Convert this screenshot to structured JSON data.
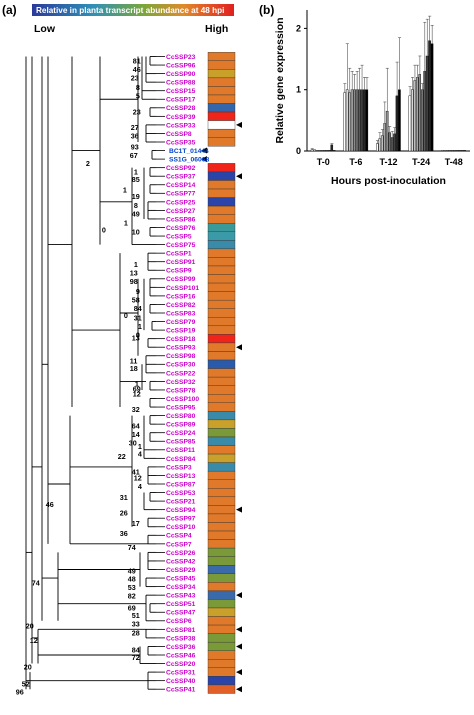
{
  "panel_a": {
    "label": "(a)",
    "colorbar_title": "Relative in planta transcript abundance at 48 hpi",
    "low_label": "Low",
    "high_label": "High",
    "leaves": [
      {
        "name": "CcSSP23",
        "color": "#e07a2a"
      },
      {
        "name": "CcSSP96",
        "color": "#e07a2a"
      },
      {
        "name": "CcSSP90",
        "color": "#c9a02a"
      },
      {
        "name": "CcSSP88",
        "color": "#e07a2a"
      },
      {
        "name": "CcSSP15",
        "color": "#e07a2a"
      },
      {
        "name": "CcSSP17",
        "color": "#e07a2a"
      },
      {
        "name": "CcSSP28",
        "color": "#3366aa"
      },
      {
        "name": "CcSSP39",
        "color": "#f02418"
      },
      {
        "name": "CcSSP33",
        "color": "#ffffff",
        "arrow": true
      },
      {
        "name": "CcSSP8",
        "color": "#e07a2a"
      },
      {
        "name": "CcSSP35",
        "color": "#e07a2a"
      },
      {
        "name": "BC1T_01444",
        "color": "",
        "ref": true,
        "arrow": true
      },
      {
        "name": "SS1G_06068",
        "color": "",
        "ref": true,
        "arrow": true
      },
      {
        "name": "CcSSP92",
        "color": "#f02418"
      },
      {
        "name": "CcSSP37",
        "color": "#2a44aa",
        "arrow": true
      },
      {
        "name": "CcSSP14",
        "color": "#e07a2a"
      },
      {
        "name": "CcSSP77",
        "color": "#e07a2a"
      },
      {
        "name": "CcSSP25",
        "color": "#2a44aa"
      },
      {
        "name": "CcSSP27",
        "color": "#e07a2a"
      },
      {
        "name": "CcSSP86",
        "color": "#e07a2a"
      },
      {
        "name": "CcSSP76",
        "color": "#3a9a9a"
      },
      {
        "name": "CcSSP5",
        "color": "#3a9aa8"
      },
      {
        "name": "CcSSP75",
        "color": "#3a8aaa"
      },
      {
        "name": "CcSSP1",
        "color": "#e07a2a"
      },
      {
        "name": "CcSSP91",
        "color": "#e07a2a"
      },
      {
        "name": "CcSSP9",
        "color": "#e07a2a"
      },
      {
        "name": "CcSSP99",
        "color": "#e07a2a"
      },
      {
        "name": "CcSSP101",
        "color": "#e07a2a"
      },
      {
        "name": "CcSSP16",
        "color": "#e07a2a"
      },
      {
        "name": "CcSSP82",
        "color": "#e07a2a"
      },
      {
        "name": "CcSSP83",
        "color": "#e07a2a"
      },
      {
        "name": "CcSSP79",
        "color": "#e07a2a"
      },
      {
        "name": "CcSSP19",
        "color": "#e07a2a"
      },
      {
        "name": "CcSSP18",
        "color": "#f02418"
      },
      {
        "name": "CcSSP93",
        "color": "#e07a2a",
        "arrow": true
      },
      {
        "name": "CcSSP98",
        "color": "#e07a2a"
      },
      {
        "name": "CcSSP30",
        "color": "#2a5aaa"
      },
      {
        "name": "CcSSP22",
        "color": "#e07a2a"
      },
      {
        "name": "CcSSP32",
        "color": "#e07a2a"
      },
      {
        "name": "CcSSP78",
        "color": "#e07a2a"
      },
      {
        "name": "CcSSP100",
        "color": "#e07a2a"
      },
      {
        "name": "CcSSP95",
        "color": "#e07a2a"
      },
      {
        "name": "CcSSP80",
        "color": "#3a8aaa"
      },
      {
        "name": "CcSSP89",
        "color": "#c9a02a"
      },
      {
        "name": "CcSSP24",
        "color": "#7a9a3a"
      },
      {
        "name": "CcSSP85",
        "color": "#3a8aaa"
      },
      {
        "name": "CcSSP11",
        "color": "#e07a2a"
      },
      {
        "name": "CcSSP84",
        "color": "#c9a02a"
      },
      {
        "name": "CcSSP3",
        "color": "#3a8aaa"
      },
      {
        "name": "CcSSP13",
        "color": "#e07a2a"
      },
      {
        "name": "CcSSP87",
        "color": "#e07a2a"
      },
      {
        "name": "CcSSP53",
        "color": "#e07a2a"
      },
      {
        "name": "CcSSP21",
        "color": "#e07a2a"
      },
      {
        "name": "CcSSP94",
        "color": "#e07a2a",
        "arrow": true
      },
      {
        "name": "CcSSP97",
        "color": "#e07a2a"
      },
      {
        "name": "CcSSP10",
        "color": "#e07a2a"
      },
      {
        "name": "CcSSP4",
        "color": "#e07a2a"
      },
      {
        "name": "CcSSP7",
        "color": "#e07a2a"
      },
      {
        "name": "CcSSP26",
        "color": "#7a9a3a"
      },
      {
        "name": "CcSSP42",
        "color": "#7a9a3a"
      },
      {
        "name": "CcSSP29",
        "color": "#3a6aaa"
      },
      {
        "name": "CcSSP45",
        "color": "#7a9a3a"
      },
      {
        "name": "CcSSP34",
        "color": "#e07a2a"
      },
      {
        "name": "CcSSP43",
        "color": "#3a6aaa",
        "arrow": true
      },
      {
        "name": "CcSSP51",
        "color": "#7a9a3a"
      },
      {
        "name": "CcSSP47",
        "color": "#c9a02a"
      },
      {
        "name": "CcSSP6",
        "color": "#e07a2a"
      },
      {
        "name": "CcSSP81",
        "color": "#e07a2a",
        "arrow": true
      },
      {
        "name": "CcSSP38",
        "color": "#7a9a3a"
      },
      {
        "name": "CcSSP36",
        "color": "#7a9a3a",
        "arrow": true
      },
      {
        "name": "CcSSP46",
        "color": "#e07a2a"
      },
      {
        "name": "CcSSP20",
        "color": "#e07a2a"
      },
      {
        "name": "CcSSP31",
        "color": "#e07a2a",
        "arrow": true
      },
      {
        "name": "CcSSP40",
        "color": "#2a44aa"
      },
      {
        "name": "CcSSP41",
        "color": "#e06028",
        "arrow": true
      }
    ],
    "bootstrap_values": [
      "81",
      "46",
      "23",
      "8",
      "5",
      "23",
      "27",
      "36",
      "93",
      "67",
      "1",
      "85",
      "1",
      "19",
      "1",
      "8",
      "49",
      "10",
      "2",
      "0",
      "1",
      "13",
      "98",
      "0",
      "9",
      "58",
      "84",
      "31",
      "1",
      "0",
      "13",
      "11",
      "18",
      "1",
      "69",
      "12",
      "32",
      "64",
      "14",
      "30",
      "1",
      "4",
      "22",
      "41",
      "12",
      "4",
      "31",
      "26",
      "17",
      "36",
      "74",
      "49",
      "48",
      "53",
      "82",
      "69",
      "20",
      "51",
      "33",
      "28",
      "12",
      "84",
      "72",
      "20",
      "46",
      "74",
      "52",
      "96"
    ]
  },
  "panel_b": {
    "label": "(b)",
    "chart_data": {
      "type": "bar",
      "title": "",
      "xlabel": "Hours post-inoculation",
      "ylabel": "Relative gene expression",
      "categories": [
        "T-0",
        "T-6",
        "T-12",
        "T-24",
        "T-48"
      ],
      "ylim": [
        0,
        2.3
      ],
      "yticks": [
        0,
        1,
        2
      ],
      "bar_fills": [
        "#ffffff",
        "#d9d9d9",
        "#bfbfbf",
        "#a6a6a6",
        "#8c8c8c",
        "#737373",
        "#595959",
        "#404040",
        "#262626",
        "#000000"
      ],
      "values": {
        "T-0": [
          0.02,
          0.02,
          0.01,
          0.01,
          0.01,
          0.01,
          0.01,
          0.01,
          0.1,
          0.01
        ],
        "T-6": [
          0.95,
          1.0,
          0.95,
          1.0,
          1.0,
          1.0,
          1.0,
          1.0,
          1.0,
          1.0
        ],
        "T-12": [
          0.12,
          0.2,
          0.25,
          0.45,
          0.65,
          0.3,
          0.22,
          0.28,
          0.9,
          1.0
        ],
        "T-24": [
          0.9,
          1.0,
          1.15,
          1.2,
          1.25,
          1.0,
          1.3,
          1.55,
          1.8,
          1.75
        ],
        "T-48": [
          0.01,
          0.01,
          0.01,
          0.01,
          0.01,
          0.01,
          0.01,
          0.01,
          0.01,
          0.01
        ]
      },
      "errors": {
        "T-0": [
          0.02,
          0.0,
          0.0,
          0.0,
          0.0,
          0.0,
          0.0,
          0.0,
          0.02,
          0.0
        ],
        "T-6": [
          0.15,
          0.75,
          0.4,
          0.3,
          0.25,
          0.3,
          0.35,
          0.4,
          0.2,
          0.2
        ],
        "T-12": [
          0.05,
          0.1,
          0.1,
          0.35,
          0.7,
          0.1,
          0.1,
          0.1,
          0.55,
          0.85
        ],
        "T-24": [
          0.15,
          0.2,
          0.25,
          0.2,
          0.3,
          0.1,
          0.8,
          0.6,
          0.4,
          0.3
        ],
        "T-48": [
          0.0,
          0.0,
          0.0,
          0.0,
          0.0,
          0.0,
          0.0,
          0.0,
          0.0,
          0.0
        ]
      }
    }
  }
}
